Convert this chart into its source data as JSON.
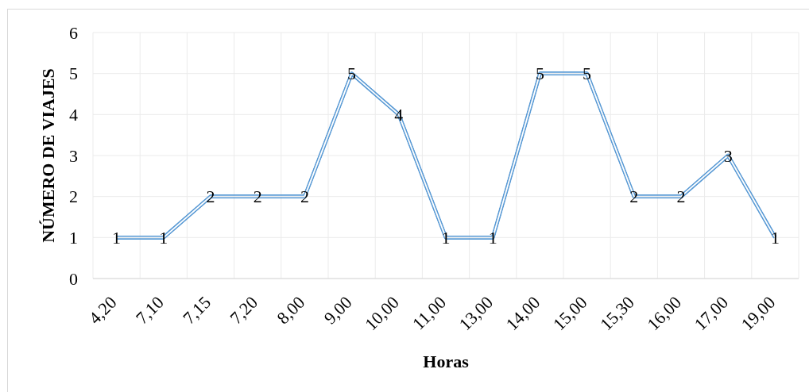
{
  "chart_data": {
    "type": "line",
    "xlabel": "Horas",
    "ylabel": "NÚMERO DE VIAJES",
    "categories": [
      "4,20",
      "7,10",
      "7,15",
      "7,20",
      "8,00",
      "9,00",
      "10,00",
      "11,00",
      "13,00",
      "14,00",
      "15,00",
      "15,30",
      "16,00",
      "17,00",
      "19,00"
    ],
    "series": [
      {
        "color": "#5b9bd5",
        "values": [
          1,
          1,
          2,
          2,
          2,
          5,
          4,
          1,
          1,
          5,
          5,
          2,
          2,
          3,
          1
        ]
      }
    ],
    "ylim": [
      0,
      6
    ],
    "yticks": [
      0,
      1,
      2,
      3,
      4,
      5,
      6
    ],
    "grid": true,
    "data_labels": true,
    "marker": "none"
  }
}
